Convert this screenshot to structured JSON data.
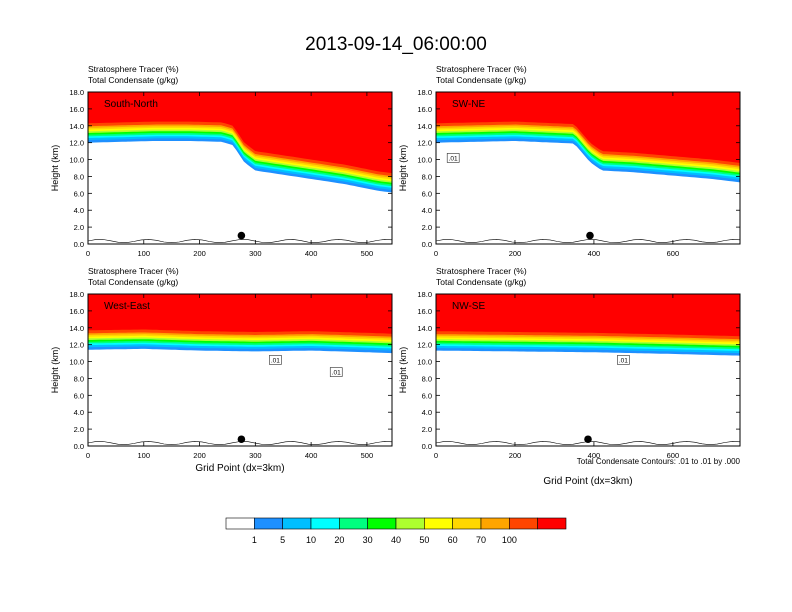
{
  "chart_data": {
    "type": "heatmap",
    "title": "2013-09-14_06:00:00",
    "var_labels": [
      "Stratosphere Tracer   (%)",
      "Total Condensate   (g/kg)"
    ],
    "ylabel": "Height (km)",
    "xlabel": "Grid Point (dx=3km)",
    "contour_note": "Total Condensate Contours: .01 to .01 by .000",
    "ylim": [
      0,
      18
    ],
    "y_ticks": [
      "0.0",
      "2.0",
      "4.0",
      "6.0",
      "8.0",
      "10.0",
      "12.0",
      "14.0",
      "16.0",
      "18.0"
    ],
    "colorbar": {
      "levels": [
        "1",
        "5",
        "10",
        "20",
        "30",
        "40",
        "50",
        "60",
        "70",
        "100"
      ],
      "colors": [
        "#ffffff",
        "#1e90ff",
        "#00bfff",
        "#00ffff",
        "#00ff7f",
        "#00ff00",
        "#adff2f",
        "#ffff00",
        "#ffd700",
        "#ffa500",
        "#ff4500",
        "#ff0000"
      ]
    },
    "panels": [
      {
        "name": "South-North",
        "xlim": [
          0,
          545
        ],
        "x_ticks": [
          "0",
          "100",
          "200",
          "300",
          "400",
          "500"
        ],
        "tropopause_km": [
          [
            0,
            14.3
          ],
          [
            60,
            14.4
          ],
          [
            120,
            14.5
          ],
          [
            180,
            14.5
          ],
          [
            240,
            14.4
          ],
          [
            260,
            14.0
          ],
          [
            280,
            12.0
          ],
          [
            300,
            11.0
          ],
          [
            340,
            10.6
          ],
          [
            400,
            10.0
          ],
          [
            460,
            9.4
          ],
          [
            520,
            8.6
          ],
          [
            545,
            8.4
          ]
        ],
        "marker": {
          "x": 275,
          "y_km": 1.0
        },
        "contour_labels": []
      },
      {
        "name": "SW-NE",
        "xlim": [
          0,
          770
        ],
        "x_ticks": [
          "0",
          "200",
          "400",
          "600"
        ],
        "tropopause_km": [
          [
            0,
            14.3
          ],
          [
            200,
            14.5
          ],
          [
            350,
            14.2
          ],
          [
            390,
            12.0
          ],
          [
            420,
            11.0
          ],
          [
            500,
            10.8
          ],
          [
            600,
            10.4
          ],
          [
            700,
            10.0
          ],
          [
            770,
            9.6
          ]
        ],
        "marker": {
          "x": 390,
          "y_km": 1.0
        },
        "contour_labels": [
          ".01"
        ]
      },
      {
        "name": "West-East",
        "xlim": [
          0,
          545
        ],
        "x_ticks": [
          "0",
          "100",
          "200",
          "300",
          "400",
          "500"
        ],
        "tropopause_km": [
          [
            0,
            13.7
          ],
          [
            100,
            13.8
          ],
          [
            200,
            13.6
          ],
          [
            300,
            13.5
          ],
          [
            400,
            13.6
          ],
          [
            500,
            13.4
          ],
          [
            545,
            13.3
          ]
        ],
        "marker": {
          "x": 275,
          "y_km": 0.8
        },
        "contour_labels": [
          ".01",
          ".01"
        ]
      },
      {
        "name": "NW-SE",
        "xlim": [
          0,
          770
        ],
        "x_ticks": [
          "0",
          "200",
          "400",
          "600"
        ],
        "tropopause_km": [
          [
            0,
            13.6
          ],
          [
            200,
            13.5
          ],
          [
            400,
            13.4
          ],
          [
            600,
            13.2
          ],
          [
            770,
            13.0
          ]
        ],
        "marker": {
          "x": 385,
          "y_km": 0.8
        },
        "contour_labels": [
          ".01"
        ]
      }
    ]
  }
}
